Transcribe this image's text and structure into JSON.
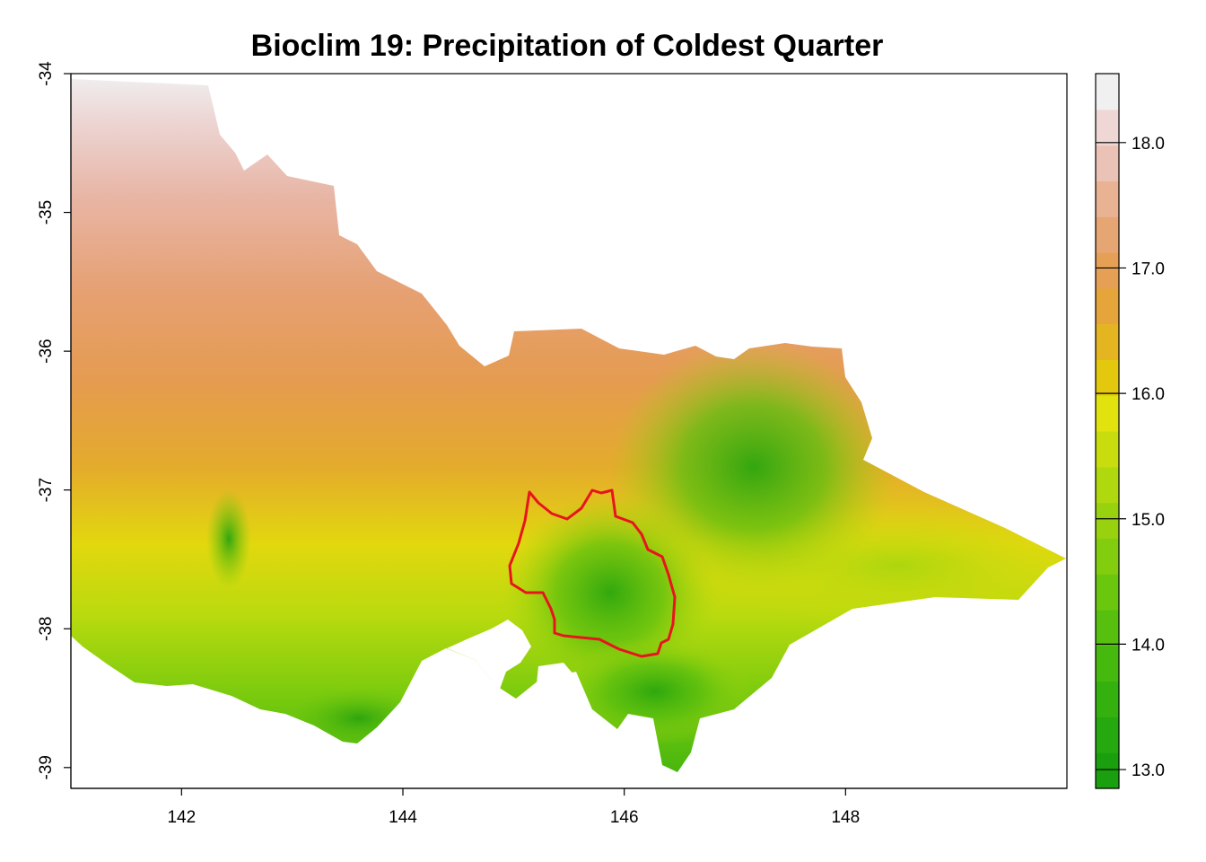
{
  "title": "Bioclim 19: Precipitation of Coldest Quarter",
  "map": {
    "x_ticks": [
      "142",
      "144",
      "146",
      "148"
    ],
    "y_ticks": [
      "-34",
      "-35",
      "-36",
      "-37",
      "-38",
      "-39"
    ],
    "x_range": [
      141.0,
      150.0
    ],
    "y_range": [
      -39.15,
      -34.0
    ],
    "raster_variable": "Precipitation of Coldest Quarter",
    "overlay_color": "#e8141e"
  },
  "legend": {
    "ticks": [
      "18.0",
      "17.0",
      "16.0",
      "15.0",
      "14.0",
      "13.0"
    ],
    "range": [
      12.85,
      18.55
    ],
    "colors": [
      "#1aa00e",
      "#25a90e",
      "#34b10e",
      "#45b90e",
      "#57c00e",
      "#6bc70e",
      "#81cd0e",
      "#98d20e",
      "#b0d80e",
      "#c9dd0e",
      "#e1e20e",
      "#e3c80e",
      "#e4b520",
      "#e5a53a",
      "#e5a055",
      "#e6a673",
      "#e8b293",
      "#ebc2b6",
      "#eed7d5",
      "#f0f0f0"
    ]
  }
}
